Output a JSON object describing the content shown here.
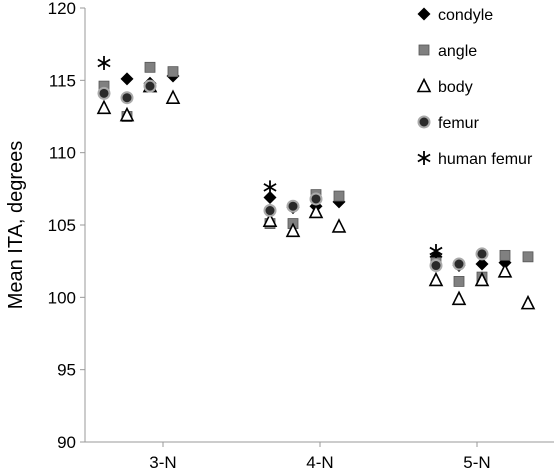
{
  "chart_data": {
    "type": "scatter",
    "title": "",
    "xlabel": "",
    "ylabel": "Mean ITA, degrees",
    "ylim": [
      90,
      120
    ],
    "yticks": [
      90,
      95,
      100,
      105,
      110,
      115,
      120
    ],
    "grid": false,
    "legend_position": "top-right",
    "categories": [
      "3-N",
      "4-N",
      "5-N"
    ],
    "series": [
      {
        "name": "condyle",
        "marker": "diamond",
        "color": "#000000",
        "points": [
          {
            "group": "3-N",
            "index": 0,
            "y": 114.1
          },
          {
            "group": "3-N",
            "index": 1,
            "y": 115.1
          },
          {
            "group": "3-N",
            "index": 2,
            "y": 114.8
          },
          {
            "group": "3-N",
            "index": 3,
            "y": 115.3
          },
          {
            "group": "4-N",
            "index": 0,
            "y": 106.9
          },
          {
            "group": "4-N",
            "index": 1,
            "y": 106.2
          },
          {
            "group": "4-N",
            "index": 2,
            "y": 106.3
          },
          {
            "group": "4-N",
            "index": 3,
            "y": 106.6
          },
          {
            "group": "5-N",
            "index": 0,
            "y": 102.8
          },
          {
            "group": "5-N",
            "index": 1,
            "y": 102.2
          },
          {
            "group": "5-N",
            "index": 2,
            "y": 102.3
          },
          {
            "group": "5-N",
            "index": 3,
            "y": 102.4
          }
        ]
      },
      {
        "name": "angle",
        "marker": "square",
        "color": "#808080",
        "points": [
          {
            "group": "3-N",
            "index": 0,
            "y": 114.6
          },
          {
            "group": "3-N",
            "index": 1,
            "y": 112.5
          },
          {
            "group": "3-N",
            "index": 2,
            "y": 115.9
          },
          {
            "group": "3-N",
            "index": 3,
            "y": 115.6
          },
          {
            "group": "4-N",
            "index": 0,
            "y": 105.1
          },
          {
            "group": "4-N",
            "index": 1,
            "y": 105.1
          },
          {
            "group": "4-N",
            "index": 2,
            "y": 107.1
          },
          {
            "group": "4-N",
            "index": 3,
            "y": 107.0
          },
          {
            "group": "5-N",
            "index": 0,
            "y": 102.4
          },
          {
            "group": "5-N",
            "index": 1,
            "y": 101.1
          },
          {
            "group": "5-N",
            "index": 2,
            "y": 101.4
          },
          {
            "group": "5-N",
            "index": 3,
            "y": 102.9
          },
          {
            "group": "5-N",
            "index": 4,
            "y": 102.8
          }
        ]
      },
      {
        "name": "body",
        "marker": "triangle",
        "color": "#ffffff",
        "points": [
          {
            "group": "3-N",
            "index": 0,
            "y": 113.1
          },
          {
            "group": "3-N",
            "index": 1,
            "y": 112.6
          },
          {
            "group": "3-N",
            "index": 2,
            "y": 114.6
          },
          {
            "group": "3-N",
            "index": 3,
            "y": 113.8
          },
          {
            "group": "4-N",
            "index": 0,
            "y": 105.3
          },
          {
            "group": "4-N",
            "index": 1,
            "y": 104.6
          },
          {
            "group": "4-N",
            "index": 2,
            "y": 105.9
          },
          {
            "group": "4-N",
            "index": 3,
            "y": 104.9
          },
          {
            "group": "5-N",
            "index": 0,
            "y": 101.2
          },
          {
            "group": "5-N",
            "index": 1,
            "y": 99.9
          },
          {
            "group": "5-N",
            "index": 2,
            "y": 101.2
          },
          {
            "group": "5-N",
            "index": 3,
            "y": 101.8
          },
          {
            "group": "5-N",
            "index": 4,
            "y": 99.6
          }
        ]
      },
      {
        "name": "femur",
        "marker": "circle",
        "color": "#404040",
        "points": [
          {
            "group": "3-N",
            "index": 0,
            "y": 114.1
          },
          {
            "group": "3-N",
            "index": 1,
            "y": 113.8
          },
          {
            "group": "3-N",
            "index": 2,
            "y": 114.6
          },
          {
            "group": "4-N",
            "index": 0,
            "y": 106.0
          },
          {
            "group": "4-N",
            "index": 1,
            "y": 106.3
          },
          {
            "group": "4-N",
            "index": 2,
            "y": 106.8
          },
          {
            "group": "5-N",
            "index": 0,
            "y": 102.2
          },
          {
            "group": "5-N",
            "index": 1,
            "y": 102.3
          },
          {
            "group": "5-N",
            "index": 2,
            "y": 103.0
          }
        ]
      },
      {
        "name": "human femur",
        "marker": "asterisk",
        "color": "#000000",
        "points": [
          {
            "group": "3-N",
            "index": 0,
            "y": 116.2
          },
          {
            "group": "4-N",
            "index": 0,
            "y": 107.6
          },
          {
            "group": "5-N",
            "index": 0,
            "y": 103.2
          }
        ]
      }
    ]
  }
}
